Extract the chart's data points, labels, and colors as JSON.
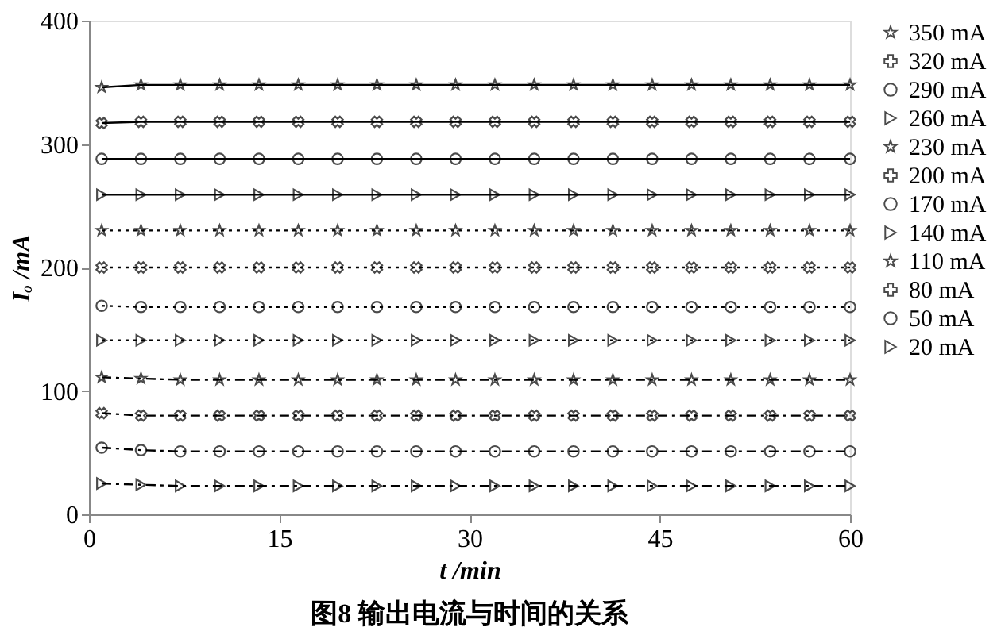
{
  "chart_data": {
    "type": "line",
    "title": "图8  输出电流与时间的关系",
    "xlabel": "t /min",
    "ylabel": "Iₒ /mA",
    "x": [
      1,
      4.1,
      7.2,
      10.3,
      13.4,
      16.5,
      19.6,
      22.7,
      25.8,
      28.9,
      32,
      35.1,
      38.2,
      41.3,
      44.4,
      47.5,
      50.6,
      53.7,
      56.8,
      60
    ],
    "xlim": [
      0,
      60
    ],
    "xticks": [
      0,
      15,
      30,
      45,
      60
    ],
    "ylim": [
      0,
      400
    ],
    "yticks": [
      0,
      100,
      200,
      300,
      400
    ],
    "grid": false,
    "legend": "right",
    "series": [
      {
        "name": "350  mA",
        "color": "#000000",
        "marker": "star",
        "line_style": "solid",
        "values": [
          346,
          348,
          348,
          348,
          348,
          348,
          348,
          348,
          348,
          348,
          348,
          348,
          348,
          348,
          348,
          348,
          348,
          348,
          348,
          348
        ]
      },
      {
        "name": "320  mA",
        "color": "#000000",
        "marker": "cross",
        "line_style": "solid",
        "values": [
          317,
          318,
          318,
          318,
          318,
          318,
          318,
          318,
          318,
          318,
          318,
          318,
          318,
          318,
          318,
          318,
          318,
          318,
          318,
          318
        ]
      },
      {
        "name": "290  mA",
        "color": "#000000",
        "marker": "circle",
        "line_style": "solid",
        "values": [
          288,
          288,
          288,
          288,
          288,
          288,
          288,
          288,
          288,
          288,
          288,
          288,
          288,
          288,
          288,
          288,
          288,
          288,
          288,
          288
        ]
      },
      {
        "name": "260  mA",
        "color": "#000000",
        "marker": "triangle",
        "line_style": "solid",
        "values": [
          259,
          259,
          259,
          259,
          259,
          259,
          259,
          259,
          259,
          259,
          259,
          259,
          259,
          259,
          259,
          259,
          259,
          259,
          259,
          259
        ]
      },
      {
        "name": "230  mA",
        "color": "#000000",
        "marker": "star",
        "line_style": "dotted",
        "values": [
          230,
          230,
          230,
          230,
          230,
          230,
          230,
          230,
          230,
          230,
          230,
          230,
          230,
          230,
          230,
          230,
          230,
          230,
          230,
          230
        ]
      },
      {
        "name": "200  mA",
        "color": "#000000",
        "marker": "cross",
        "line_style": "dotted",
        "values": [
          200,
          200,
          200,
          200,
          200,
          200,
          200,
          200,
          200,
          200,
          200,
          200,
          200,
          200,
          200,
          200,
          200,
          200,
          200,
          200
        ]
      },
      {
        "name": "170  mA",
        "color": "#000000",
        "marker": "circle",
        "line_style": "dotted",
        "values": [
          169,
          168,
          168,
          168,
          168,
          168,
          168,
          168,
          168,
          168,
          168,
          168,
          168,
          168,
          168,
          168,
          168,
          168,
          168,
          168
        ]
      },
      {
        "name": "140  mA",
        "color": "#000000",
        "marker": "triangle",
        "line_style": "dotted",
        "values": [
          141,
          141,
          141,
          141,
          141,
          141,
          141,
          141,
          141,
          141,
          141,
          141,
          141,
          141,
          141,
          141,
          141,
          141,
          141,
          141
        ]
      },
      {
        "name": "110  mA",
        "color": "#000000",
        "marker": "star",
        "line_style": "dashdot",
        "values": [
          111,
          110,
          109,
          109,
          109,
          109,
          109,
          109,
          109,
          109,
          109,
          109,
          109,
          109,
          109,
          109,
          109,
          109,
          109,
          109
        ]
      },
      {
        "name": "80  mA",
        "color": "#000000",
        "marker": "cross",
        "line_style": "dashdot",
        "values": [
          82,
          80,
          80,
          80,
          80,
          80,
          80,
          80,
          80,
          80,
          80,
          80,
          80,
          80,
          80,
          80,
          80,
          80,
          80,
          80
        ]
      },
      {
        "name": "50  mA",
        "color": "#000000",
        "marker": "circle",
        "line_style": "dashdot",
        "values": [
          54,
          52,
          51,
          51,
          51,
          51,
          51,
          51,
          51,
          51,
          51,
          51,
          51,
          51,
          51,
          51,
          51,
          51,
          51,
          51
        ]
      },
      {
        "name": "20  mA",
        "color": "#000000",
        "marker": "triangle",
        "line_style": "dashdot",
        "values": [
          25,
          24,
          23,
          23,
          23,
          23,
          23,
          23,
          23,
          23,
          23,
          23,
          23,
          23,
          23,
          23,
          23,
          23,
          23,
          23
        ]
      }
    ]
  }
}
